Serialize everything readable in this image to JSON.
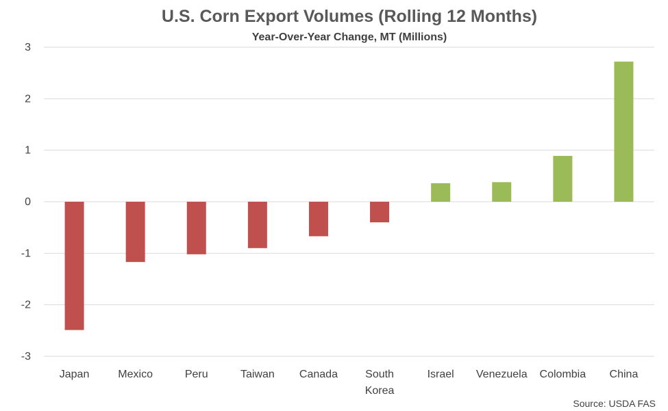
{
  "chart_data": {
    "type": "bar",
    "title": "U.S. Corn Export Volumes (Rolling 12 Months)",
    "subtitle": "Year-Over-Year Change, MT (Millions)",
    "source": "Source: USDA FAS",
    "categories": [
      "Japan",
      "Mexico",
      "Peru",
      "Taiwan",
      "Canada",
      "South Korea",
      "Israel",
      "Venezuela",
      "Colombia",
      "China"
    ],
    "category_lines": [
      [
        "Japan"
      ],
      [
        "Mexico"
      ],
      [
        "Peru"
      ],
      [
        "Taiwan"
      ],
      [
        "Canada"
      ],
      [
        "South",
        "Korea"
      ],
      [
        "Israel"
      ],
      [
        "Venezuela"
      ],
      [
        "Colombia"
      ],
      [
        "China"
      ]
    ],
    "values": [
      -2.49,
      -1.17,
      -1.02,
      -0.9,
      -0.67,
      -0.4,
      0.36,
      0.38,
      0.89,
      2.72
    ],
    "ylim": [
      -3,
      3
    ],
    "yticks": [
      3,
      2,
      1,
      0,
      -1,
      -2,
      -3
    ],
    "grid": true,
    "legend": "none",
    "colors": {
      "negative": "#c0504d",
      "positive": "#9bbb59",
      "grid": "#d9d9d9",
      "text": "#404040"
    }
  }
}
